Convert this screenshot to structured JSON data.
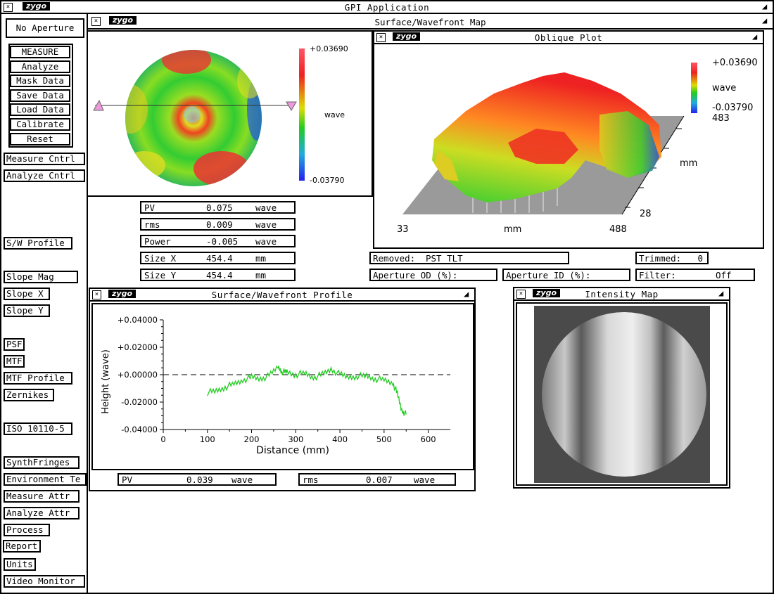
{
  "app": {
    "title": "GPI Application",
    "logo": "zygo"
  },
  "sidebar": {
    "aperture": "No Aperture",
    "group_buttons": [
      "MEASURE",
      "Analyze",
      "Mask Data",
      "Save Data",
      "Load Data",
      "Calibrate",
      "Reset"
    ],
    "buttons": [
      "Measure Cntrl",
      "Analyze Cntrl",
      "S/W Profile",
      "Slope Mag",
      "Slope X",
      "Slope Y",
      "PSF",
      "MTF",
      "MTF Profile",
      "Zernikes",
      "ISO 10110-5",
      "SynthFringes",
      "Environment Te",
      "Measure Attr",
      "Analyze Attr",
      "Process",
      "Report",
      "Units",
      "Video Monitor"
    ]
  },
  "surface_map": {
    "window_title": "Surface/Wavefront Map",
    "logo": "zygo",
    "scale_max": "+0.03690",
    "scale_min": "-0.03790",
    "scale_unit": "wave"
  },
  "stats": [
    {
      "label": "PV",
      "value": "0.075",
      "unit": "wave"
    },
    {
      "label": "rms",
      "value": "0.009",
      "unit": "wave"
    },
    {
      "label": "Power",
      "value": "-0.005",
      "unit": "wave"
    },
    {
      "label": "Size X",
      "value": "454.4",
      "unit": "mm"
    },
    {
      "label": "Size Y",
      "value": "454.4",
      "unit": "mm"
    }
  ],
  "oblique": {
    "window_title": "Oblique Plot",
    "logo": "zygo",
    "scale_max": "+0.03690",
    "scale_unit": "wave",
    "scale_min": "-0.03790",
    "z_label": "483",
    "x_start": "33",
    "x_label": "mm",
    "x_end": "488",
    "y_label": "mm",
    "y_start": "28"
  },
  "info": {
    "removed_label": "Removed:",
    "removed_value": "PST TLT",
    "trimmed_label": "Trimmed:",
    "trimmed_value": "0",
    "aperture_od": "Aperture OD (%):",
    "aperture_id": "Aperture ID (%):",
    "filter_label": "Filter:",
    "filter_value": "Off"
  },
  "profile": {
    "window_title": "Surface/Wavefront Profile",
    "logo": "zygo",
    "pv_label": "PV",
    "pv_value": "0.039",
    "pv_unit": "wave",
    "rms_label": "rms",
    "rms_value": "0.007",
    "rms_unit": "wave"
  },
  "chart_data": {
    "type": "line",
    "xlabel": "Distance (mm)",
    "ylabel": "Height (wave)",
    "xlim": [
      0,
      650
    ],
    "ylim": [
      -0.04,
      0.04
    ],
    "x_ticks": [
      "0",
      "100",
      "200",
      "300",
      "400",
      "500",
      "600"
    ],
    "y_ticks": [
      "+0.04000",
      "+0.02000",
      "+0.00000",
      "-0.02000",
      "-0.04000"
    ],
    "series": [
      {
        "color": "#22cc22",
        "x": [
          100,
          120,
          140,
          160,
          180,
          200,
          220,
          240,
          260,
          270,
          280,
          300,
          320,
          340,
          360,
          380,
          400,
          420,
          440,
          460,
          480,
          500,
          520,
          530,
          540,
          550
        ],
        "y": [
          -0.013,
          -0.012,
          -0.009,
          -0.007,
          -0.004,
          -0.002,
          -0.003,
          -0.001,
          0.006,
          0.002,
          0.002,
          0.0,
          0.001,
          -0.002,
          0.0,
          0.004,
          0.0,
          -0.002,
          -0.001,
          -0.001,
          -0.003,
          -0.004,
          -0.006,
          -0.014,
          -0.026,
          -0.029
        ]
      }
    ],
    "zero_line": true
  },
  "intensity": {
    "window_title": "Intensity Map",
    "logo": "zygo"
  },
  "colors": {
    "frame": "#000000",
    "profile_line": "#22cc22",
    "oblique_floor": "#9a9a9a",
    "intensity_bg": "#4a4a4a"
  }
}
